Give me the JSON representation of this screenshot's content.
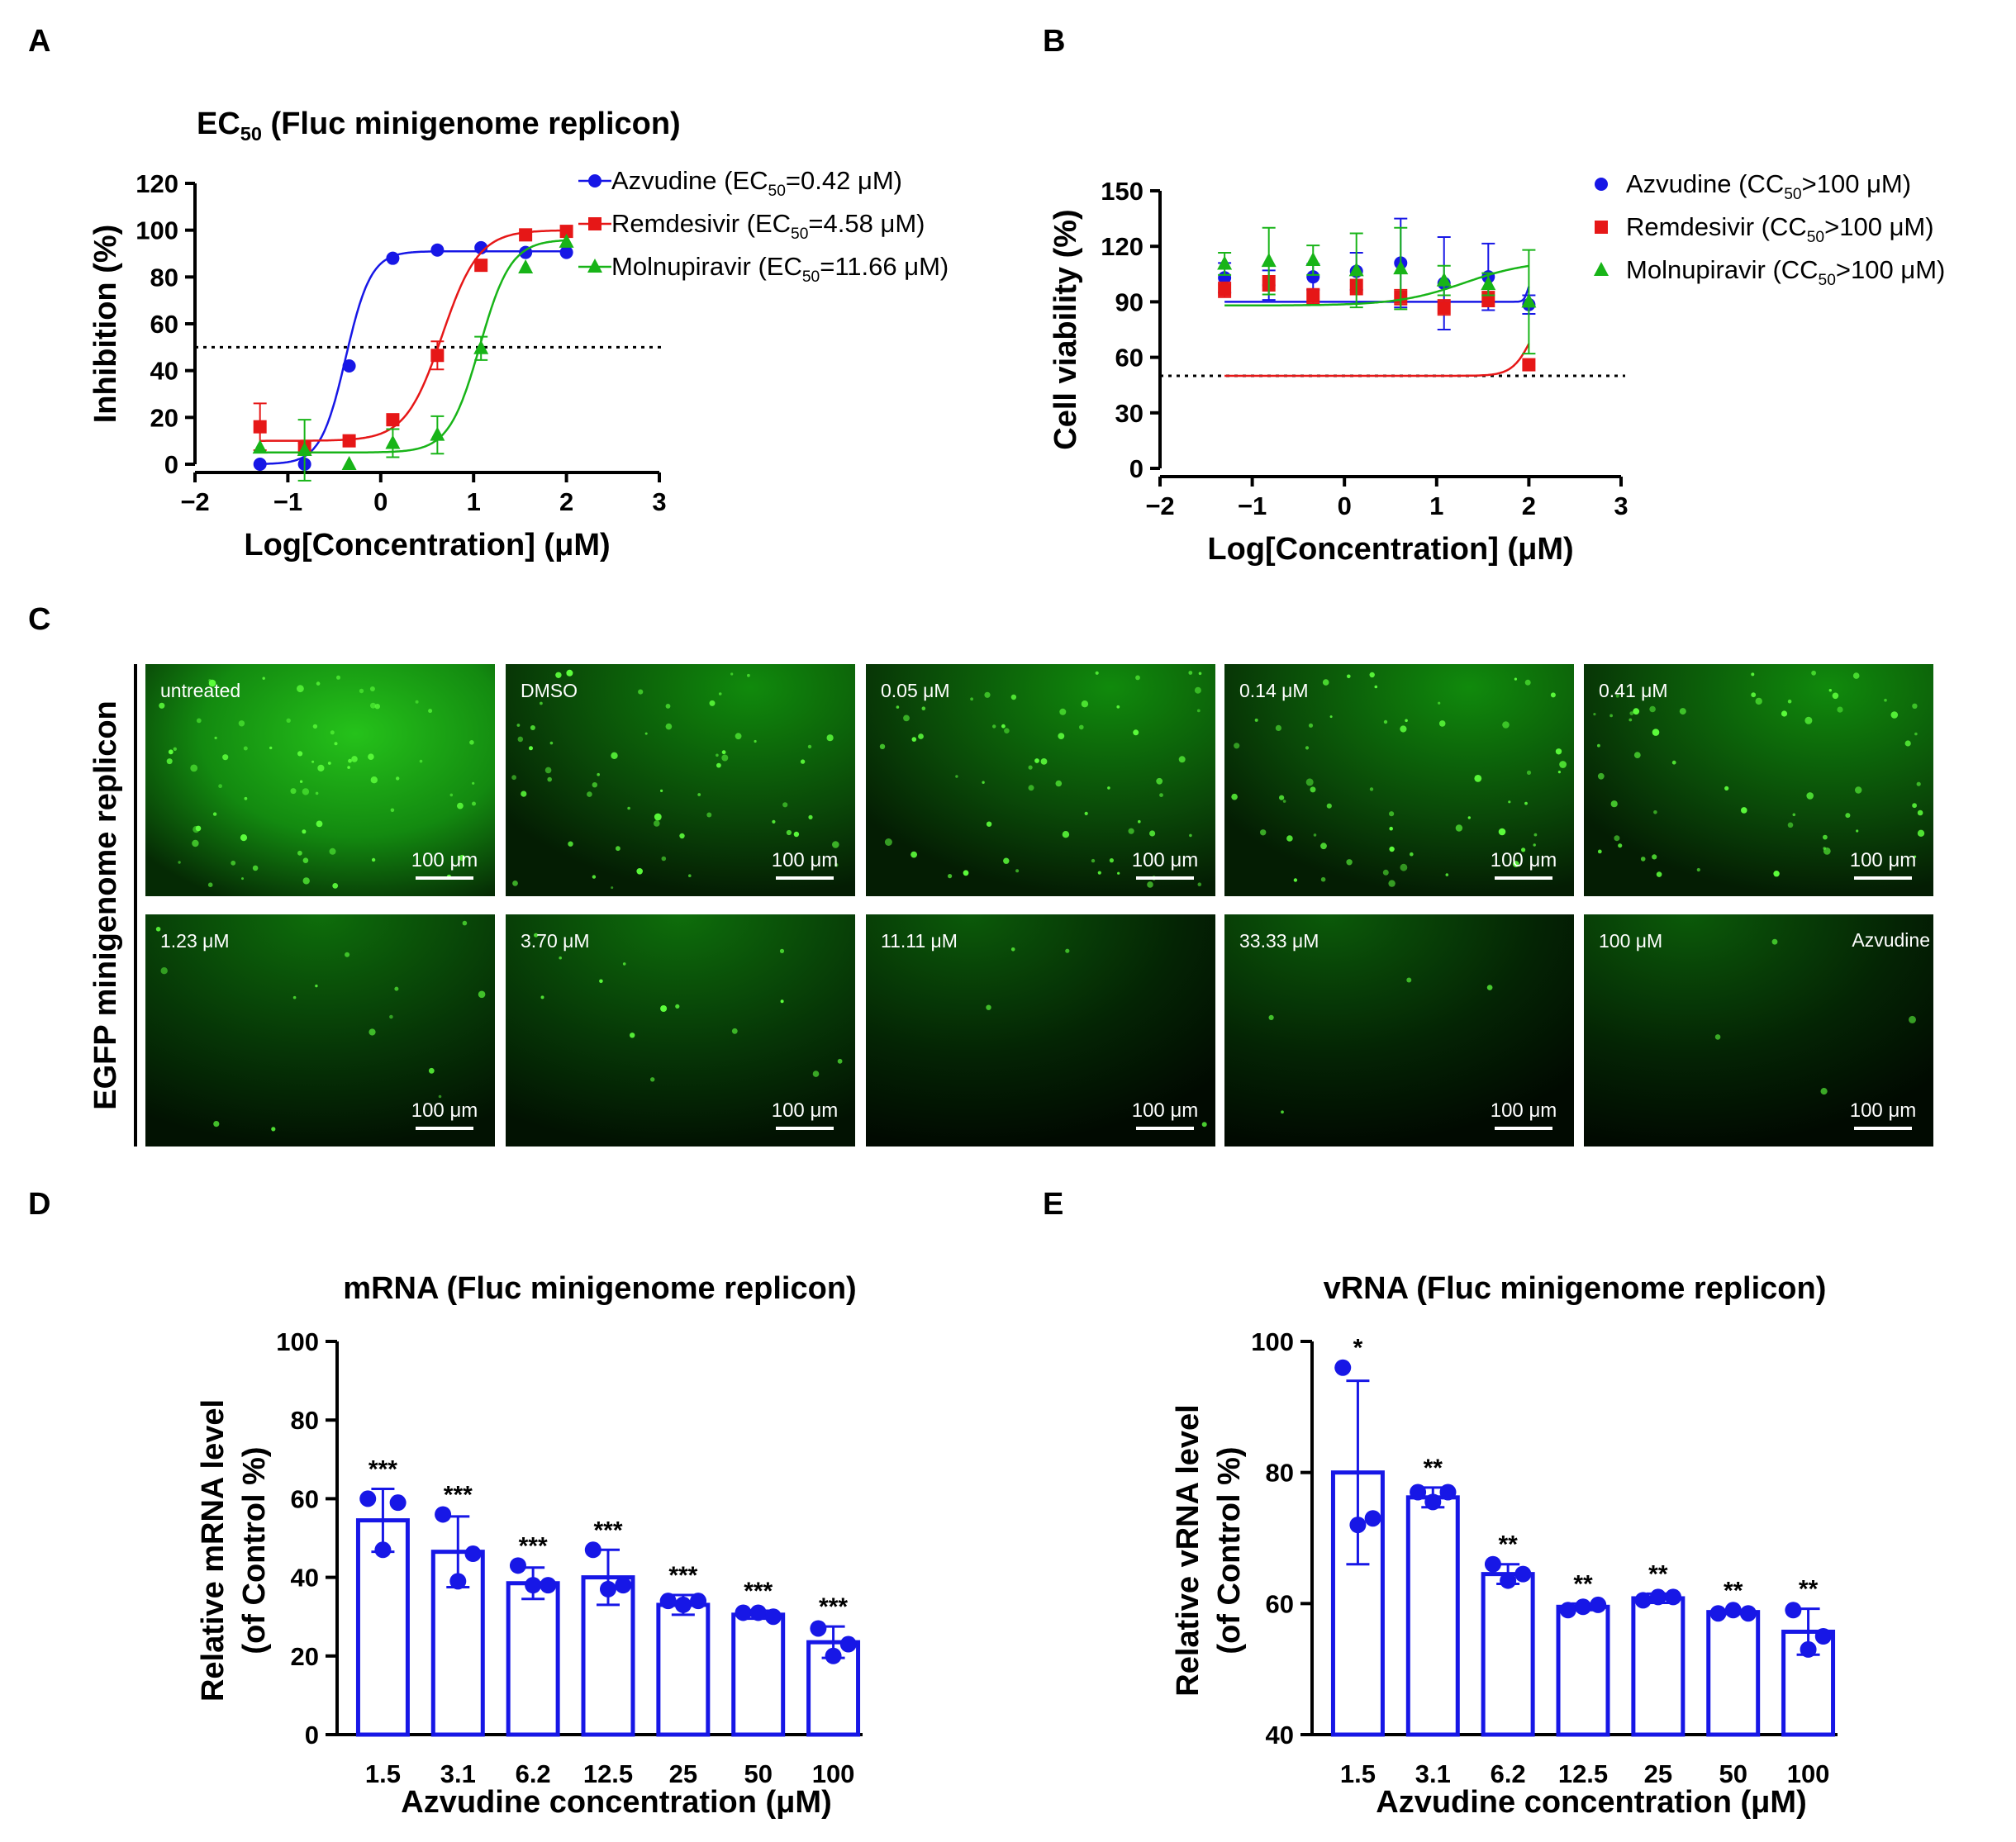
{
  "panels": {
    "A": "A",
    "B": "B",
    "C": "C",
    "D": "D",
    "E": "E"
  },
  "colors": {
    "azvudine": "#1717e6",
    "remdesivir": "#e61717",
    "molnupiravir": "#18b418",
    "bar": "#1717e6",
    "threshold": "#000000"
  },
  "chart_data": [
    {
      "id": "A",
      "type": "line",
      "title": "EC50 (Fluc minigenome replicon)",
      "title_parts": {
        "main": "EC",
        "sub": "50",
        "rest": " (Fluc minigenome replicon)"
      },
      "xlabel": "Log[Concentration] (μM)",
      "ylabel": "Inhibition (%)",
      "xlim": [
        -2,
        3
      ],
      "ylim": [
        0,
        120
      ],
      "xticks": [
        -2,
        -1,
        0,
        1,
        2,
        3
      ],
      "xtick_labels": [
        "−2",
        "−1",
        "0",
        "1",
        "2",
        "3"
      ],
      "yticks": [
        0,
        20,
        40,
        60,
        80,
        100,
        120
      ],
      "threshold": 50,
      "series": [
        {
          "name": "Azvudine",
          "legend": {
            "pre": "Azvudine (EC",
            "sub": "50",
            "post": "=0.42 μM)"
          },
          "marker": "circle",
          "color": "#1717e6",
          "x": [
            -1.3,
            -0.82,
            -0.34,
            0.13,
            0.61,
            1.08,
            1.56,
            2.0
          ],
          "y": [
            0,
            0,
            42,
            88,
            91.5,
            92.5,
            90.5,
            90.5
          ],
          "err": [
            0,
            0,
            0,
            0,
            0,
            0,
            0,
            0
          ],
          "fit": {
            "bottom": 0,
            "top": 91,
            "logec50": -0.377,
            "hill": 3.2
          }
        },
        {
          "name": "Remdesivir",
          "legend": {
            "pre": "Remdesivir (EC",
            "sub": "50",
            "post": "=4.58 μM)"
          },
          "marker": "square",
          "color": "#e61717",
          "x": [
            -1.3,
            -0.82,
            -0.34,
            0.13,
            0.61,
            1.08,
            1.56,
            2.0
          ],
          "y": [
            16,
            7,
            10,
            19,
            46.5,
            85,
            98,
            99.5
          ],
          "err": [
            10,
            2,
            0,
            0,
            6,
            0,
            0,
            0
          ],
          "fit": {
            "bottom": 10,
            "top": 100,
            "logec50": 0.661,
            "hill": 2.2
          }
        },
        {
          "name": "Molnupiravir",
          "legend": {
            "pre": "Molnupiravir (EC",
            "sub": "50",
            "post": "=11.66 μM)"
          },
          "marker": "triangle",
          "color": "#18b418",
          "x": [
            -1.3,
            -0.82,
            -0.34,
            0.13,
            0.61,
            1.08,
            1.56,
            2.0
          ],
          "y": [
            7,
            6,
            0,
            9,
            12.5,
            49.5,
            84,
            95
          ],
          "err": [
            0,
            13,
            0,
            6,
            8,
            5,
            0,
            0
          ],
          "fit": {
            "bottom": 5,
            "top": 96,
            "logec50": 1.067,
            "hill": 2.6
          }
        }
      ]
    },
    {
      "id": "B",
      "type": "line",
      "title": "",
      "xlabel": "Log[Concentration] (μM)",
      "ylabel": "Cell viability (%)",
      "xlim": [
        -2,
        3
      ],
      "ylim": [
        0,
        150
      ],
      "xticks": [
        -2,
        -1,
        0,
        1,
        2,
        3
      ],
      "xtick_labels": [
        "−2",
        "−1",
        "0",
        "1",
        "2",
        "3"
      ],
      "yticks": [
        0,
        30,
        60,
        90,
        120,
        150
      ],
      "threshold": 50,
      "series": [
        {
          "name": "Azvudine",
          "legend": {
            "pre": "Azvudine (CC",
            "sub": "50",
            "post": ">100 μM)"
          },
          "marker": "circle",
          "color": "#1717e6",
          "x": [
            -1.3,
            -0.82,
            -0.34,
            0.13,
            0.61,
            1.08,
            1.56,
            2.0
          ],
          "y": [
            103,
            99,
            103.5,
            106.5,
            111,
            100,
            103.5,
            88.5
          ],
          "err": [
            8,
            8,
            7,
            10,
            24,
            25,
            18,
            5
          ],
          "fit": {
            "bottom": 90,
            "top": 103.5,
            "logec50": 1.99,
            "hill": 20
          }
        },
        {
          "name": "Remdesivir",
          "legend": {
            "pre": "Remdesivir (CC",
            "sub": "50",
            "post": ">100 μM)"
          },
          "marker": "square",
          "color": "#e61717",
          "x": [
            -1.3,
            -0.82,
            -0.34,
            0.13,
            0.61,
            1.08,
            1.56,
            2.0
          ],
          "y": [
            96.5,
            100,
            93,
            98,
            92.5,
            87,
            91.5,
            56
          ],
          "err": [
            4,
            4,
            4,
            4,
            4,
            4,
            4,
            0
          ],
          "fit": {
            "bottom": 50,
            "top": 95,
            "logec50": 2.05,
            "hill": 4
          }
        },
        {
          "name": "Molnupiravir",
          "legend": {
            "pre": "Molnupiravir (CC",
            "sub": "50",
            "post": ">100 μM)"
          },
          "marker": "triangle",
          "color": "#18b418",
          "x": [
            -1.3,
            -0.82,
            -0.34,
            0.13,
            0.61,
            1.08,
            1.56,
            2.0
          ],
          "y": [
            110.5,
            112,
            112.5,
            107,
            108,
            101.5,
            99.5,
            90
          ],
          "err": [
            6,
            18,
            8,
            20,
            22,
            8,
            6,
            28
          ],
          "fit": {
            "bottom": 88,
            "top": 112.5,
            "logec50": 1.3,
            "hill": 1.2
          }
        }
      ]
    },
    {
      "id": "D",
      "type": "bar",
      "title": "mRNA (Fluc minigenome replicon)",
      "xlabel": "Azvudine concentration (μM)",
      "ylabel_lines": [
        "Relative mRNA level",
        "(of Control %)"
      ],
      "categories": [
        "1.5",
        "3.1",
        "6.2",
        "12.5",
        "25",
        "50",
        "100"
      ],
      "values": [
        54.5,
        46.5,
        38.5,
        40,
        33,
        30.5,
        23.5
      ],
      "err": [
        8,
        9,
        4,
        7,
        2.5,
        1,
        4
      ],
      "points": [
        [
          60,
          47,
          59
        ],
        [
          56,
          39,
          46
        ],
        [
          43,
          38,
          38
        ],
        [
          47,
          37,
          38
        ],
        [
          34,
          33,
          34
        ],
        [
          31,
          31,
          30
        ],
        [
          27,
          20,
          23
        ]
      ],
      "sig": [
        "***",
        "***",
        "***",
        "***",
        "***",
        "***",
        "***"
      ],
      "ylim": [
        0,
        100
      ],
      "yticks": [
        0,
        20,
        40,
        60,
        80,
        100
      ]
    },
    {
      "id": "E",
      "type": "bar",
      "title": "vRNA (Fluc minigenome replicon)",
      "xlabel": "Azvudine concentration (μM)",
      "ylabel_lines": [
        "Relative vRNA level",
        "(of Control %)"
      ],
      "categories": [
        "1.5",
        "3.1",
        "6.2",
        "12.5",
        "25",
        "50",
        "100"
      ],
      "values": [
        80,
        76.2,
        64.5,
        59.5,
        60.8,
        58.7,
        55.7
      ],
      "err": [
        14,
        1.5,
        1.5,
        0.5,
        0.7,
        0.3,
        3.5
      ],
      "points": [
        [
          96,
          72,
          73
        ],
        [
          77,
          75.5,
          77
        ],
        [
          66,
          63.5,
          64.5
        ],
        [
          59,
          59.5,
          59.8
        ],
        [
          60.5,
          61,
          61
        ],
        [
          58.5,
          59,
          58.5
        ],
        [
          59,
          53,
          55
        ]
      ],
      "sig": [
        "*",
        "**",
        "**",
        "**",
        "**",
        "**",
        "**"
      ],
      "ylim": [
        40,
        100
      ],
      "yticks": [
        40,
        60,
        80,
        100
      ]
    }
  ],
  "microscopy": {
    "side_label": "EGFP minigenome replicon",
    "scale_bar": "100 μm",
    "drug_label": "Azvudine",
    "tiles": [
      {
        "label": "untreated",
        "level": "bright"
      },
      {
        "label": "DMSO",
        "level": "medium"
      },
      {
        "label": "0.05 μM",
        "level": "medium"
      },
      {
        "label": "0.14 μM",
        "level": "medium"
      },
      {
        "label": "0.41 μM",
        "level": "medium"
      },
      {
        "label": "1.23 μM",
        "level": "low"
      },
      {
        "label": "3.70 μM",
        "level": "low"
      },
      {
        "label": "11.11 μM",
        "level": "vlow"
      },
      {
        "label": "33.33 μM",
        "level": "vlow"
      },
      {
        "label": "100 μM",
        "level": "vlow"
      }
    ]
  }
}
